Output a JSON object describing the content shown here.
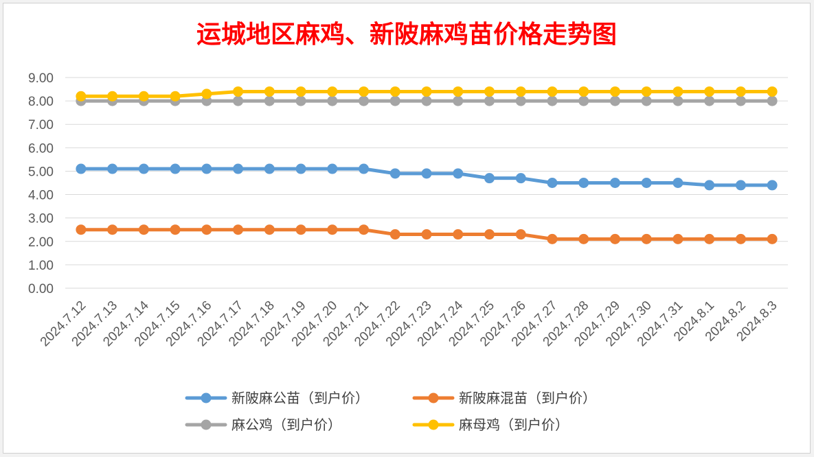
{
  "chart_data": {
    "type": "line",
    "title": "运城地区麻鸡、新陂麻鸡苗价格走势图",
    "xlabel": "",
    "ylabel": "",
    "ylim": [
      0,
      9
    ],
    "yticks": [
      "0.00",
      "1.00",
      "2.00",
      "3.00",
      "4.00",
      "5.00",
      "6.00",
      "7.00",
      "8.00",
      "9.00"
    ],
    "grid": true,
    "legend_position": "bottom",
    "categories": [
      "2024.7.12",
      "2024.7.13",
      "2024.7.14",
      "2024.7.15",
      "2024.7.16",
      "2024.7.17",
      "2024.7.18",
      "2024.7.19",
      "2024.7.20",
      "2024.7.21",
      "2024.7.22",
      "2024.7.23",
      "2024.7.24",
      "2024.7.25",
      "2024.7.26",
      "2024.7.27",
      "2024.7.28",
      "2024.7.29",
      "2024.7.30",
      "2024.7.31",
      "2024.8.1",
      "2024.8.2",
      "2024.8.3"
    ],
    "series": [
      {
        "name": "新陂麻公苗（到户价）",
        "color": "#5b9bd5",
        "values": [
          5.1,
          5.1,
          5.1,
          5.1,
          5.1,
          5.1,
          5.1,
          5.1,
          5.1,
          5.1,
          4.9,
          4.9,
          4.9,
          4.7,
          4.7,
          4.5,
          4.5,
          4.5,
          4.5,
          4.5,
          4.4,
          4.4,
          4.4
        ]
      },
      {
        "name": "新陂麻混苗（到户价）",
        "color": "#ed7d31",
        "values": [
          2.5,
          2.5,
          2.5,
          2.5,
          2.5,
          2.5,
          2.5,
          2.5,
          2.5,
          2.5,
          2.3,
          2.3,
          2.3,
          2.3,
          2.3,
          2.1,
          2.1,
          2.1,
          2.1,
          2.1,
          2.1,
          2.1,
          2.1
        ]
      },
      {
        "name": "麻公鸡（到户价）",
        "color": "#a5a5a5",
        "values": [
          8.0,
          8.0,
          8.0,
          8.0,
          8.0,
          8.0,
          8.0,
          8.0,
          8.0,
          8.0,
          8.0,
          8.0,
          8.0,
          8.0,
          8.0,
          8.0,
          8.0,
          8.0,
          8.0,
          8.0,
          8.0,
          8.0,
          8.0
        ]
      },
      {
        "name": "麻母鸡（到户价）",
        "color": "#ffc000",
        "values": [
          8.2,
          8.2,
          8.2,
          8.2,
          8.3,
          8.4,
          8.4,
          8.4,
          8.4,
          8.4,
          8.4,
          8.4,
          8.4,
          8.4,
          8.4,
          8.4,
          8.4,
          8.4,
          8.4,
          8.4,
          8.4,
          8.4,
          8.4
        ]
      }
    ]
  }
}
